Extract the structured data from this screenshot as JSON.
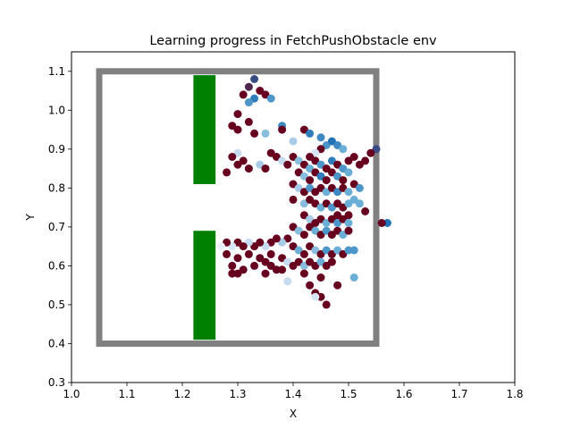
{
  "chart_data": {
    "type": "scatter",
    "title": "Learning progress in FetchPushObstacle env",
    "xlabel": "X",
    "ylabel": "Y",
    "xlim": [
      1.0,
      1.8
    ],
    "ylim": [
      0.3,
      1.15
    ],
    "x_ticks": [
      "1.0",
      "1.1",
      "1.2",
      "1.3",
      "1.4",
      "1.5",
      "1.6",
      "1.7",
      "1.8"
    ],
    "y_ticks": [
      "0.3",
      "0.4",
      "0.5",
      "0.6",
      "0.7",
      "0.8",
      "0.9",
      "1.0",
      "1.1"
    ],
    "grid": false,
    "legend": "none",
    "table_boundary": {
      "x": [
        1.05,
        1.55
      ],
      "y": [
        0.4,
        1.1
      ],
      "color": "#808080"
    },
    "obstacles": [
      {
        "x": [
          1.22,
          1.26
        ],
        "y": [
          0.81,
          1.09
        ],
        "color": "#008000"
      },
      {
        "x": [
          1.22,
          1.26
        ],
        "y": [
          0.41,
          0.69
        ],
        "color": "#008000"
      }
    ],
    "colormap": [
      "#f7fbff",
      "#c6dbef",
      "#6baed6",
      "#2171b5",
      "#67001f"
    ],
    "colormap_stops": [
      0.0,
      0.3,
      0.6,
      0.85,
      1.0
    ],
    "points": [
      [
        1.33,
        1.08,
        0.9
      ],
      [
        1.32,
        1.06,
        0.95
      ],
      [
        1.34,
        1.05,
        1.0
      ],
      [
        1.35,
        1.04,
        1.0
      ],
      [
        1.31,
        1.04,
        1.0
      ],
      [
        1.33,
        1.03,
        0.8
      ],
      [
        1.36,
        1.03,
        0.7
      ],
      [
        1.32,
        1.02,
        0.7
      ],
      [
        1.3,
        0.99,
        1.0
      ],
      [
        1.32,
        0.97,
        1.0
      ],
      [
        1.38,
        0.96,
        0.75
      ],
      [
        1.38,
        0.95,
        1.0
      ],
      [
        1.35,
        0.94,
        0.5
      ],
      [
        1.33,
        0.94,
        1.0
      ],
      [
        1.29,
        0.96,
        1.0
      ],
      [
        1.3,
        0.95,
        1.0
      ],
      [
        1.42,
        0.95,
        1.0
      ],
      [
        1.43,
        0.94,
        0.8
      ],
      [
        1.4,
        0.92,
        0.4
      ],
      [
        1.45,
        0.93,
        0.75
      ],
      [
        1.46,
        0.91,
        0.7
      ],
      [
        1.47,
        0.92,
        0.85
      ],
      [
        1.48,
        0.91,
        0.75
      ],
      [
        1.49,
        0.9,
        0.6
      ],
      [
        1.45,
        0.9,
        1.0
      ],
      [
        1.44,
        0.89,
        0.2
      ],
      [
        1.43,
        0.88,
        1.0
      ],
      [
        1.3,
        0.89,
        0.3
      ],
      [
        1.29,
        0.88,
        1.0
      ],
      [
        1.31,
        0.87,
        1.0
      ],
      [
        1.36,
        0.89,
        1.0
      ],
      [
        1.37,
        0.88,
        1.0
      ],
      [
        1.38,
        0.87,
        0.3
      ],
      [
        1.39,
        0.86,
        1.0
      ],
      [
        1.4,
        0.88,
        1.0
      ],
      [
        1.41,
        0.87,
        0.5
      ],
      [
        1.42,
        0.86,
        1.0
      ],
      [
        1.43,
        0.85,
        0.6
      ],
      [
        1.44,
        0.87,
        1.0
      ],
      [
        1.45,
        0.86,
        0.7
      ],
      [
        1.46,
        0.85,
        1.0
      ],
      [
        1.47,
        0.87,
        0.8
      ],
      [
        1.48,
        0.86,
        1.0
      ],
      [
        1.49,
        0.85,
        0.7
      ],
      [
        1.5,
        0.87,
        1.0
      ],
      [
        1.51,
        0.88,
        1.0
      ],
      [
        1.53,
        0.87,
        1.0
      ],
      [
        1.55,
        0.9,
        0.9
      ],
      [
        1.54,
        0.89,
        1.0
      ],
      [
        1.52,
        0.86,
        1.0
      ],
      [
        1.3,
        0.86,
        1.0
      ],
      [
        1.32,
        0.85,
        1.0
      ],
      [
        1.34,
        0.86,
        0.4
      ],
      [
        1.35,
        0.85,
        1.0
      ],
      [
        1.28,
        0.84,
        1.0
      ],
      [
        1.41,
        0.84,
        1.0
      ],
      [
        1.42,
        0.83,
        0.5
      ],
      [
        1.43,
        0.82,
        1.0
      ],
      [
        1.44,
        0.84,
        1.0
      ],
      [
        1.45,
        0.83,
        0.8
      ],
      [
        1.46,
        0.82,
        1.0
      ],
      [
        1.47,
        0.84,
        1.0
      ],
      [
        1.48,
        0.83,
        0.7
      ],
      [
        1.49,
        0.82,
        1.0
      ],
      [
        1.5,
        0.84,
        0.6
      ],
      [
        1.4,
        0.81,
        1.0
      ],
      [
        1.41,
        0.8,
        0.4
      ],
      [
        1.42,
        0.79,
        1.0
      ],
      [
        1.43,
        0.8,
        0.7
      ],
      [
        1.44,
        0.79,
        1.0
      ],
      [
        1.45,
        0.8,
        1.0
      ],
      [
        1.46,
        0.79,
        0.6
      ],
      [
        1.47,
        0.8,
        1.0
      ],
      [
        1.48,
        0.79,
        0.75
      ],
      [
        1.49,
        0.8,
        1.0
      ],
      [
        1.5,
        0.79,
        0.6
      ],
      [
        1.51,
        0.81,
        1.0
      ],
      [
        1.52,
        0.8,
        0.7
      ],
      [
        1.4,
        0.77,
        1.0
      ],
      [
        1.42,
        0.76,
        0.5
      ],
      [
        1.43,
        0.77,
        1.0
      ],
      [
        1.44,
        0.76,
        1.0
      ],
      [
        1.45,
        0.75,
        0.6
      ],
      [
        1.46,
        0.76,
        1.0
      ],
      [
        1.47,
        0.75,
        0.7
      ],
      [
        1.48,
        0.76,
        1.0
      ],
      [
        1.49,
        0.75,
        1.0
      ],
      [
        1.5,
        0.76,
        0.6
      ],
      [
        1.51,
        0.77,
        0.6
      ],
      [
        1.52,
        0.76,
        0.6
      ],
      [
        1.53,
        0.74,
        1.0
      ],
      [
        1.5,
        0.73,
        1.0
      ],
      [
        1.48,
        0.73,
        1.0
      ],
      [
        1.42,
        0.73,
        1.0
      ],
      [
        1.43,
        0.72,
        0.4
      ],
      [
        1.44,
        0.71,
        1.0
      ],
      [
        1.45,
        0.72,
        1.0
      ],
      [
        1.46,
        0.71,
        0.6
      ],
      [
        1.47,
        0.72,
        1.0
      ],
      [
        1.48,
        0.71,
        0.7
      ],
      [
        1.49,
        0.72,
        1.0
      ],
      [
        1.5,
        0.71,
        0.6
      ],
      [
        1.57,
        0.71,
        0.85
      ],
      [
        1.56,
        0.71,
        1.0
      ],
      [
        1.4,
        0.7,
        1.0
      ],
      [
        1.41,
        0.69,
        0.5
      ],
      [
        1.42,
        0.68,
        1.0
      ],
      [
        1.43,
        0.7,
        1.0
      ],
      [
        1.44,
        0.69,
        0.6
      ],
      [
        1.45,
        0.68,
        1.0
      ],
      [
        1.46,
        0.69,
        0.7
      ],
      [
        1.47,
        0.68,
        1.0
      ],
      [
        1.48,
        0.69,
        1.0
      ],
      [
        1.49,
        0.68,
        0.6
      ],
      [
        1.5,
        0.69,
        1.0
      ],
      [
        1.39,
        0.67,
        1.0
      ],
      [
        1.38,
        0.66,
        0.4
      ],
      [
        1.37,
        0.67,
        1.0
      ],
      [
        1.36,
        0.66,
        1.0
      ],
      [
        1.35,
        0.65,
        0.3
      ],
      [
        1.34,
        0.66,
        1.0
      ],
      [
        1.33,
        0.65,
        1.0
      ],
      [
        1.32,
        0.66,
        0.3
      ],
      [
        1.31,
        0.65,
        1.0
      ],
      [
        1.3,
        0.66,
        1.0
      ],
      [
        1.29,
        0.65,
        0.2
      ],
      [
        1.28,
        0.66,
        1.0
      ],
      [
        1.27,
        0.65,
        0.1
      ],
      [
        1.4,
        0.65,
        1.0
      ],
      [
        1.41,
        0.64,
        0.6
      ],
      [
        1.42,
        0.63,
        1.0
      ],
      [
        1.43,
        0.65,
        1.0
      ],
      [
        1.44,
        0.64,
        0.5
      ],
      [
        1.45,
        0.63,
        1.0
      ],
      [
        1.46,
        0.64,
        0.7
      ],
      [
        1.47,
        0.63,
        1.0
      ],
      [
        1.48,
        0.64,
        0.6
      ],
      [
        1.49,
        0.63,
        1.0
      ],
      [
        1.5,
        0.64,
        0.7
      ],
      [
        1.51,
        0.64,
        0.7
      ],
      [
        1.28,
        0.63,
        1.0
      ],
      [
        1.3,
        0.62,
        1.0
      ],
      [
        1.32,
        0.63,
        1.0
      ],
      [
        1.34,
        0.62,
        1.0
      ],
      [
        1.36,
        0.63,
        1.0
      ],
      [
        1.38,
        0.62,
        1.0
      ],
      [
        1.39,
        0.61,
        0.3
      ],
      [
        1.4,
        0.6,
        1.0
      ],
      [
        1.41,
        0.61,
        1.0
      ],
      [
        1.42,
        0.6,
        0.5
      ],
      [
        1.43,
        0.61,
        1.0
      ],
      [
        1.44,
        0.6,
        1.0
      ],
      [
        1.45,
        0.61,
        0.6
      ],
      [
        1.46,
        0.6,
        1.0
      ],
      [
        1.47,
        0.61,
        1.0
      ],
      [
        1.29,
        0.6,
        1.0
      ],
      [
        1.31,
        0.59,
        1.0
      ],
      [
        1.33,
        0.6,
        1.0
      ],
      [
        1.35,
        0.61,
        1.0
      ],
      [
        1.37,
        0.59,
        1.0
      ],
      [
        1.29,
        0.58,
        1.0
      ],
      [
        1.3,
        0.58,
        1.0
      ],
      [
        1.39,
        0.56,
        0.3
      ],
      [
        1.43,
        0.55,
        1.0
      ],
      [
        1.44,
        0.53,
        1.0
      ],
      [
        1.45,
        0.52,
        1.0
      ],
      [
        1.44,
        0.52,
        0.2
      ],
      [
        1.46,
        0.5,
        1.0
      ],
      [
        1.48,
        0.55,
        1.0
      ],
      [
        1.51,
        0.57,
        0.6
      ],
      [
        1.38,
        0.59,
        1.0
      ],
      [
        1.42,
        0.58,
        1.0
      ],
      [
        1.45,
        0.57,
        1.0
      ],
      [
        1.35,
        0.58,
        1.0
      ],
      [
        1.36,
        0.6,
        1.0
      ]
    ]
  }
}
